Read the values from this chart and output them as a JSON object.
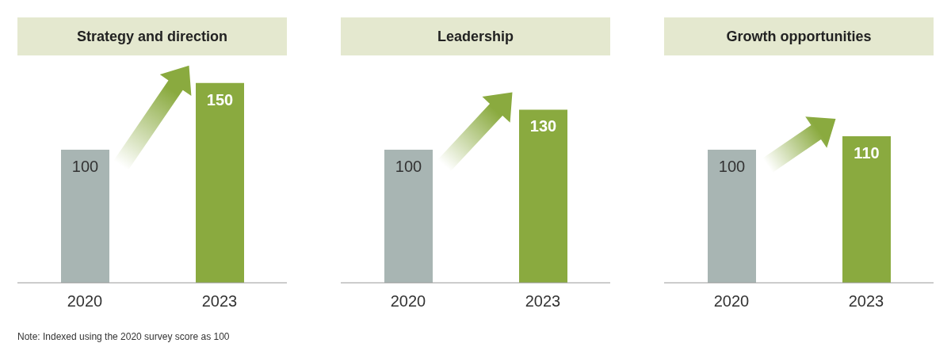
{
  "chart_data": [
    {
      "type": "bar",
      "title": "Strategy and direction",
      "categories": [
        "2020",
        "2023"
      ],
      "values": [
        100,
        150
      ],
      "colors": [
        "#a8b5b3",
        "#8aaa3f"
      ],
      "data_labels": true,
      "annotations": [
        "Note: Indexed using the 2020 survey score as 100"
      ]
    },
    {
      "type": "bar",
      "title": "Leadership",
      "categories": [
        "2020",
        "2023"
      ],
      "values": [
        100,
        130
      ],
      "colors": [
        "#a8b5b3",
        "#8aaa3f"
      ],
      "data_labels": true
    },
    {
      "type": "bar",
      "title": "Growth opportunities",
      "categories": [
        "2020",
        "2023"
      ],
      "values": [
        100,
        110
      ],
      "colors": [
        "#a8b5b3",
        "#8aaa3f"
      ],
      "data_labels": true
    }
  ]
}
